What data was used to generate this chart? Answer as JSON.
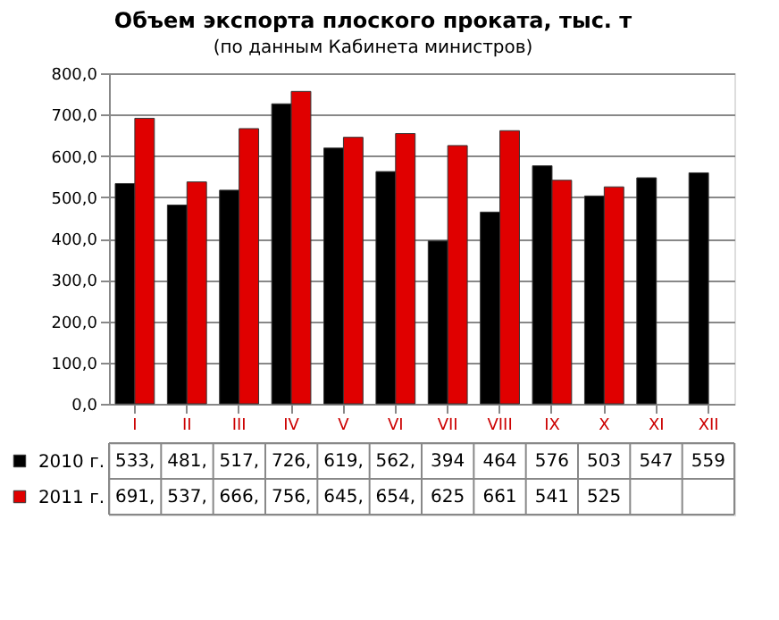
{
  "chart_data": {
    "type": "bar",
    "title": "Объем экспорта плоского проката, тыс. т",
    "subtitle": "(по данным Кабинета министров)",
    "categories": [
      "I",
      "II",
      "III",
      "IV",
      "V",
      "VI",
      "VII",
      "VIII",
      "IX",
      "X",
      "XI",
      "XII"
    ],
    "series": [
      {
        "name": "2010 г.",
        "color": "#000000",
        "values": [
          533,
          481,
          517,
          726,
          619,
          562,
          394,
          464,
          576,
          503,
          547,
          559
        ],
        "value_labels": [
          "533,",
          "481,",
          "517,",
          "726,",
          "619,",
          "562,",
          "394",
          "464",
          "576",
          "503",
          "547",
          "559"
        ]
      },
      {
        "name": "2011 г.",
        "color": "#e00000",
        "values": [
          691,
          537,
          666,
          756,
          645,
          654,
          625,
          661,
          541,
          525,
          null,
          null
        ],
        "value_labels": [
          "691,",
          "537,",
          "666,",
          "756,",
          "645,",
          "654,",
          "625",
          "661",
          "541",
          "525",
          null,
          null
        ]
      }
    ],
    "ylim": [
      0,
      800
    ],
    "yticks": [
      {
        "value": 0,
        "label": "0,0"
      },
      {
        "value": 100,
        "label": "100,0"
      },
      {
        "value": 200,
        "label": "200,0"
      },
      {
        "value": 300,
        "label": "300,0"
      },
      {
        "value": 400,
        "label": "400,0"
      },
      {
        "value": 500,
        "label": "500,0"
      },
      {
        "value": 600,
        "label": "600,0"
      },
      {
        "value": 700,
        "label": "700,0"
      },
      {
        "value": 800,
        "label": "800,0"
      }
    ],
    "grid": "y",
    "legend": "bottom"
  }
}
